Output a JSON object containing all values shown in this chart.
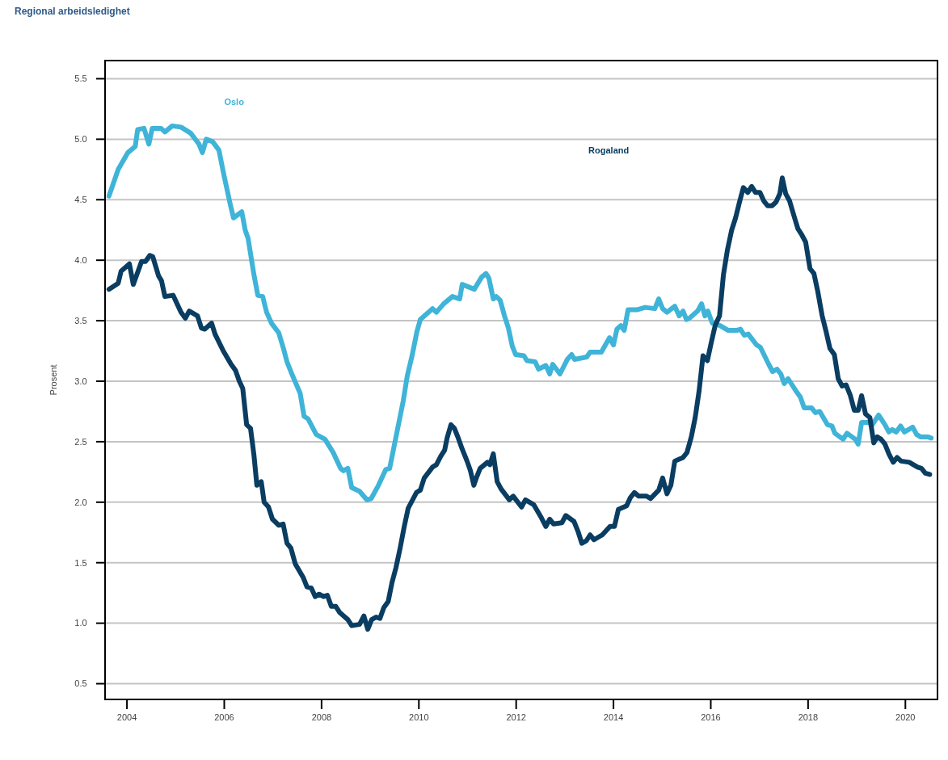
{
  "chart_data": {
    "type": "line",
    "title": "Regional arbeidsledighet",
    "ylabel": "Prosent",
    "xlim": [
      2003.55,
      2020.66
    ],
    "xticks": [
      2004,
      2006,
      2008,
      2010,
      2012,
      2014,
      2016,
      2018,
      2020
    ],
    "ylim": [
      0.37,
      5.65
    ],
    "yticks": [
      {
        "value": 0.5,
        "label": "0.5"
      },
      {
        "value": 1,
        "label": "1.0"
      },
      {
        "value": 1.5,
        "label": "1.5"
      },
      {
        "value": 2,
        "label": "2.0"
      },
      {
        "value": 2.5,
        "label": "2.5"
      },
      {
        "value": 3,
        "label": "3.0"
      },
      {
        "value": 3.5,
        "label": "3.5"
      },
      {
        "value": 4,
        "label": "4.0"
      },
      {
        "value": 4.5,
        "label": "4.5"
      },
      {
        "value": 5,
        "label": "5.0"
      },
      {
        "value": 5.5,
        "label": "5.5"
      }
    ],
    "grid": "y",
    "series": [
      {
        "name": "Oslo",
        "color": "#3fb4d8",
        "x": [
          2003.63,
          2003.82,
          2004.02,
          2004.17,
          2004.22,
          2004.35,
          2004.45,
          2004.52,
          2004.7,
          2004.78,
          2004.93,
          2005.11,
          2005.31,
          2005.48,
          2005.55,
          2005.63,
          2005.76,
          2005.89,
          2005.99,
          2006.13,
          2006.19,
          2006.36,
          2006.43,
          2006.49,
          2006.61,
          2006.69,
          2006.79,
          2006.87,
          2006.97,
          2007.12,
          2007.21,
          2007.29,
          2007.39,
          2007.56,
          2007.64,
          2007.72,
          2007.89,
          2008.07,
          2008.24,
          2008.39,
          2008.45,
          2008.54,
          2008.62,
          2008.78,
          2008.93,
          2009.02,
          2009.17,
          2009.32,
          2009.4,
          2009.53,
          2009.68,
          2009.76,
          2009.86,
          2009.96,
          2010.03,
          2010.2,
          2010.28,
          2010.36,
          2010.51,
          2010.69,
          2010.84,
          2010.89,
          2011.14,
          2011.29,
          2011.38,
          2011.44,
          2011.53,
          2011.59,
          2011.67,
          2011.76,
          2011.84,
          2011.92,
          2011.99,
          2012.16,
          2012.22,
          2012.39,
          2012.46,
          2012.61,
          2012.69,
          2012.75,
          2012.9,
          2013.05,
          2013.14,
          2013.2,
          2013.45,
          2013.52,
          2013.75,
          2013.92,
          2014.0,
          2014.07,
          2014.15,
          2014.22,
          2014.3,
          2014.48,
          2014.65,
          2014.85,
          2014.93,
          2015.01,
          2015.1,
          2015.26,
          2015.35,
          2015.43,
          2015.5,
          2015.56,
          2015.73,
          2015.81,
          2015.88,
          2015.94,
          2016.03,
          2016.19,
          2016.36,
          2016.53,
          2016.61,
          2016.69,
          2016.77,
          2016.94,
          2017.02,
          2017.19,
          2017.27,
          2017.36,
          2017.44,
          2017.51,
          2017.59,
          2017.75,
          2017.84,
          2017.92,
          2018.07,
          2018.15,
          2018.24,
          2018.4,
          2018.49,
          2018.55,
          2018.72,
          2018.8,
          2018.97,
          2019.03,
          2019.1,
          2019.23,
          2019.32,
          2019.45,
          2019.58,
          2019.66,
          2019.73,
          2019.81,
          2019.9,
          2019.98,
          2020.15,
          2020.23,
          2020.31,
          2020.46,
          2020.53
        ],
        "values": [
          4.53,
          4.75,
          4.89,
          4.94,
          5.08,
          5.09,
          4.96,
          5.09,
          5.09,
          5.06,
          5.11,
          5.1,
          5.05,
          4.96,
          4.89,
          5.0,
          4.98,
          4.91,
          4.71,
          4.45,
          4.35,
          4.4,
          4.25,
          4.18,
          3.88,
          3.71,
          3.7,
          3.57,
          3.48,
          3.4,
          3.28,
          3.16,
          3.06,
          2.9,
          2.71,
          2.69,
          2.56,
          2.52,
          2.41,
          2.28,
          2.26,
          2.28,
          2.12,
          2.09,
          2.02,
          2.03,
          2.14,
          2.27,
          2.28,
          2.54,
          2.84,
          3.04,
          3.21,
          3.41,
          3.51,
          3.57,
          3.6,
          3.57,
          3.64,
          3.7,
          3.68,
          3.8,
          3.76,
          3.86,
          3.89,
          3.85,
          3.68,
          3.7,
          3.67,
          3.54,
          3.44,
          3.29,
          3.22,
          3.21,
          3.17,
          3.16,
          3.1,
          3.13,
          3.06,
          3.14,
          3.06,
          3.18,
          3.22,
          3.18,
          3.2,
          3.24,
          3.24,
          3.36,
          3.3,
          3.43,
          3.46,
          3.42,
          3.59,
          3.59,
          3.61,
          3.6,
          3.68,
          3.6,
          3.57,
          3.62,
          3.54,
          3.58,
          3.51,
          3.52,
          3.58,
          3.64,
          3.54,
          3.58,
          3.48,
          3.46,
          3.42,
          3.42,
          3.43,
          3.38,
          3.39,
          3.3,
          3.28,
          3.14,
          3.08,
          3.1,
          3.06,
          2.98,
          3.02,
          2.92,
          2.87,
          2.78,
          2.78,
          2.74,
          2.75,
          2.64,
          2.63,
          2.57,
          2.52,
          2.57,
          2.52,
          2.48,
          2.66,
          2.66,
          2.64,
          2.72,
          2.64,
          2.58,
          2.6,
          2.58,
          2.63,
          2.58,
          2.62,
          2.56,
          2.54,
          2.54,
          2.53
        ]
      },
      {
        "name": "Rogaland",
        "color": "#0a3d62",
        "x": [
          2003.63,
          2003.82,
          2003.88,
          2004.05,
          2004.13,
          2004.3,
          2004.38,
          2004.47,
          2004.53,
          2004.65,
          2004.71,
          2004.78,
          2004.95,
          2005.11,
          2005.2,
          2005.28,
          2005.45,
          2005.53,
          2005.6,
          2005.74,
          2005.81,
          2005.98,
          2006.14,
          2006.23,
          2006.31,
          2006.38,
          2006.46,
          2006.54,
          2006.61,
          2006.67,
          2006.76,
          2006.82,
          2006.91,
          2006.99,
          2007.12,
          2007.21,
          2007.29,
          2007.37,
          2007.46,
          2007.62,
          2007.7,
          2007.79,
          2007.87,
          2007.95,
          2008.04,
          2008.12,
          2008.2,
          2008.29,
          2008.37,
          2008.54,
          2008.62,
          2008.78,
          2008.87,
          2008.95,
          2009.03,
          2009.12,
          2009.2,
          2009.28,
          2009.37,
          2009.45,
          2009.53,
          2009.61,
          2009.7,
          2009.78,
          2009.95,
          2010.03,
          2010.11,
          2010.28,
          2010.36,
          2010.45,
          2010.53,
          2010.58,
          2010.66,
          2010.73,
          2010.81,
          2010.89,
          2010.99,
          2011.06,
          2011.13,
          2011.19,
          2011.26,
          2011.41,
          2011.46,
          2011.53,
          2011.61,
          2011.69,
          2011.86,
          2011.94,
          2012.11,
          2012.19,
          2012.36,
          2012.52,
          2012.61,
          2012.69,
          2012.77,
          2012.94,
          2013.02,
          2013.19,
          2013.27,
          2013.35,
          2013.44,
          2013.52,
          2013.6,
          2013.77,
          2013.93,
          2014.02,
          2014.1,
          2014.27,
          2014.35,
          2014.43,
          2014.52,
          2014.68,
          2014.76,
          2014.93,
          2015.01,
          2015.1,
          2015.18,
          2015.26,
          2015.43,
          2015.51,
          2015.6,
          2015.68,
          2015.76,
          2015.84,
          2015.93,
          2016.01,
          2016.09,
          2016.18,
          2016.26,
          2016.34,
          2016.43,
          2016.51,
          2016.59,
          2016.67,
          2016.76,
          2016.84,
          2016.92,
          2017.01,
          2017.09,
          2017.17,
          2017.26,
          2017.34,
          2017.42,
          2017.47,
          2017.54,
          2017.62,
          2017.7,
          2017.79,
          2017.87,
          2017.95,
          2018.04,
          2018.12,
          2018.2,
          2018.29,
          2018.37,
          2018.45,
          2018.54,
          2018.62,
          2018.7,
          2018.78,
          2018.87,
          2018.95,
          2019.03,
          2019.1,
          2019.18,
          2019.27,
          2019.35,
          2019.42,
          2019.5,
          2019.58,
          2019.66,
          2019.75,
          2019.83,
          2019.91,
          2020.08,
          2020.25,
          2020.33,
          2020.41,
          2020.5
        ],
        "values": [
          3.76,
          3.81,
          3.91,
          3.97,
          3.8,
          3.99,
          3.99,
          4.04,
          4.03,
          3.87,
          3.83,
          3.7,
          3.71,
          3.57,
          3.52,
          3.58,
          3.54,
          3.44,
          3.43,
          3.48,
          3.39,
          3.25,
          3.14,
          3.09,
          3.0,
          2.94,
          2.64,
          2.61,
          2.39,
          2.14,
          2.17,
          2.0,
          1.96,
          1.86,
          1.81,
          1.82,
          1.66,
          1.62,
          1.49,
          1.38,
          1.3,
          1.29,
          1.22,
          1.24,
          1.22,
          1.23,
          1.14,
          1.14,
          1.09,
          1.03,
          0.98,
          0.99,
          1.06,
          0.95,
          1.03,
          1.05,
          1.04,
          1.13,
          1.18,
          1.34,
          1.46,
          1.61,
          1.8,
          1.95,
          2.08,
          2.1,
          2.2,
          2.29,
          2.31,
          2.38,
          2.43,
          2.53,
          2.64,
          2.61,
          2.53,
          2.44,
          2.34,
          2.26,
          2.14,
          2.21,
          2.28,
          2.33,
          2.31,
          2.4,
          2.17,
          2.11,
          2.02,
          2.05,
          1.96,
          2.02,
          1.98,
          1.87,
          1.8,
          1.86,
          1.82,
          1.83,
          1.89,
          1.84,
          1.76,
          1.66,
          1.68,
          1.73,
          1.69,
          1.73,
          1.8,
          1.8,
          1.94,
          1.97,
          2.04,
          2.08,
          2.05,
          2.05,
          2.03,
          2.1,
          2.2,
          2.07,
          2.14,
          2.34,
          2.37,
          2.41,
          2.54,
          2.7,
          2.92,
          3.21,
          3.17,
          3.32,
          3.46,
          3.54,
          3.88,
          4.08,
          4.25,
          4.35,
          4.48,
          4.6,
          4.56,
          4.61,
          4.56,
          4.56,
          4.49,
          4.45,
          4.45,
          4.48,
          4.55,
          4.68,
          4.55,
          4.49,
          4.38,
          4.26,
          4.21,
          4.15,
          3.93,
          3.89,
          3.74,
          3.54,
          3.41,
          3.27,
          3.22,
          3.02,
          2.96,
          2.97,
          2.88,
          2.76,
          2.76,
          2.88,
          2.73,
          2.7,
          2.49,
          2.54,
          2.52,
          2.48,
          2.4,
          2.33,
          2.37,
          2.34,
          2.33,
          2.29,
          2.28,
          2.24,
          2.23
        ]
      }
    ]
  }
}
